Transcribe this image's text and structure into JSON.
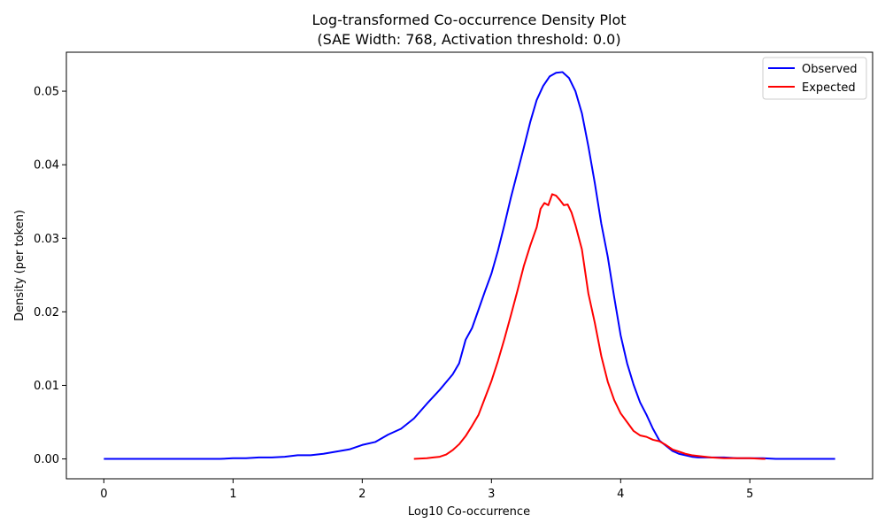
{
  "chart_data": {
    "type": "line",
    "title_line1": "Log-transformed Co-occurrence Density Plot",
    "title_line2": "(SAE Width: 768, Activation threshold: 0.0)",
    "xlabel": "Log10 Co-occurrence",
    "ylabel": "Density (per token)",
    "xlim": [
      -0.29,
      5.95
    ],
    "ylim": [
      -0.0027,
      0.0553
    ],
    "xticks": [
      0,
      1,
      2,
      3,
      4,
      5
    ],
    "xtick_labels": [
      "0",
      "1",
      "2",
      "3",
      "4",
      "5"
    ],
    "yticks": [
      0.0,
      0.01,
      0.02,
      0.03,
      0.04,
      0.05
    ],
    "ytick_labels": [
      "0.00",
      "0.01",
      "0.02",
      "0.03",
      "0.04",
      "0.05"
    ],
    "grid": false,
    "legend_position": "top-right",
    "series": [
      {
        "name": "Observed",
        "color": "#0000ff",
        "x": [
          0.0,
          0.1,
          0.2,
          0.3,
          0.4,
          0.5,
          0.6,
          0.7,
          0.8,
          0.9,
          1.0,
          1.1,
          1.2,
          1.3,
          1.4,
          1.5,
          1.6,
          1.7,
          1.8,
          1.9,
          2.0,
          2.1,
          2.2,
          2.3,
          2.4,
          2.5,
          2.6,
          2.7,
          2.75,
          2.8,
          2.85,
          2.9,
          2.95,
          3.0,
          3.05,
          3.1,
          3.15,
          3.2,
          3.25,
          3.3,
          3.35,
          3.4,
          3.45,
          3.5,
          3.55,
          3.6,
          3.65,
          3.7,
          3.75,
          3.8,
          3.85,
          3.9,
          3.95,
          4.0,
          4.05,
          4.1,
          4.15,
          4.2,
          4.25,
          4.3,
          4.35,
          4.4,
          4.45,
          4.5,
          4.55,
          4.6,
          4.65,
          4.7,
          4.8,
          4.9,
          5.0,
          5.1,
          5.2,
          5.3,
          5.4,
          5.5,
          5.6,
          5.66
        ],
        "y": [
          0.0,
          0.0,
          0.0,
          0.0,
          0.0,
          0.0,
          0.0,
          0.0,
          0.0,
          0.0,
          0.0001,
          0.0001,
          0.0002,
          0.0002,
          0.0003,
          0.0005,
          0.0005,
          0.0007,
          0.001,
          0.0013,
          0.0019,
          0.0023,
          0.0033,
          0.0041,
          0.0055,
          0.0075,
          0.0094,
          0.0115,
          0.013,
          0.0162,
          0.0178,
          0.0203,
          0.0228,
          0.0252,
          0.0283,
          0.0318,
          0.0355,
          0.0389,
          0.0423,
          0.0458,
          0.0488,
          0.0507,
          0.052,
          0.0525,
          0.0526,
          0.0518,
          0.05,
          0.047,
          0.0425,
          0.0375,
          0.032,
          0.0275,
          0.022,
          0.0168,
          0.013,
          0.0101,
          0.0077,
          0.006,
          0.0041,
          0.0025,
          0.0018,
          0.0011,
          0.0007,
          0.0005,
          0.0003,
          0.0002,
          0.0002,
          0.0002,
          0.0002,
          0.0001,
          0.0001,
          0.0001,
          0.0,
          0.0,
          0.0,
          0.0,
          0.0,
          0.0
        ]
      },
      {
        "name": "Expected",
        "color": "#ff0000",
        "x": [
          2.4,
          2.5,
          2.55,
          2.6,
          2.65,
          2.7,
          2.75,
          2.8,
          2.85,
          2.9,
          2.95,
          3.0,
          3.05,
          3.1,
          3.15,
          3.2,
          3.25,
          3.3,
          3.35,
          3.38,
          3.41,
          3.44,
          3.47,
          3.5,
          3.53,
          3.56,
          3.59,
          3.62,
          3.65,
          3.7,
          3.75,
          3.8,
          3.85,
          3.9,
          3.95,
          4.0,
          4.05,
          4.1,
          4.15,
          4.2,
          4.25,
          4.3,
          4.35,
          4.4,
          4.45,
          4.5,
          4.55,
          4.6,
          4.7,
          4.8,
          4.9,
          5.0,
          5.1,
          5.12
        ],
        "y": [
          0.0,
          0.0001,
          0.0002,
          0.0003,
          0.0006,
          0.0012,
          0.002,
          0.0031,
          0.0045,
          0.006,
          0.0083,
          0.0106,
          0.0133,
          0.0163,
          0.0195,
          0.0228,
          0.0262,
          0.029,
          0.0315,
          0.034,
          0.0348,
          0.0345,
          0.036,
          0.0358,
          0.0352,
          0.0345,
          0.0346,
          0.0335,
          0.0318,
          0.0285,
          0.0225,
          0.0185,
          0.014,
          0.0105,
          0.008,
          0.0062,
          0.005,
          0.0038,
          0.0032,
          0.003,
          0.0026,
          0.0024,
          0.0019,
          0.0013,
          0.001,
          0.0007,
          0.0005,
          0.0004,
          0.0002,
          0.0001,
          0.0001,
          0.0001,
          0.0,
          0.0
        ]
      }
    ]
  }
}
